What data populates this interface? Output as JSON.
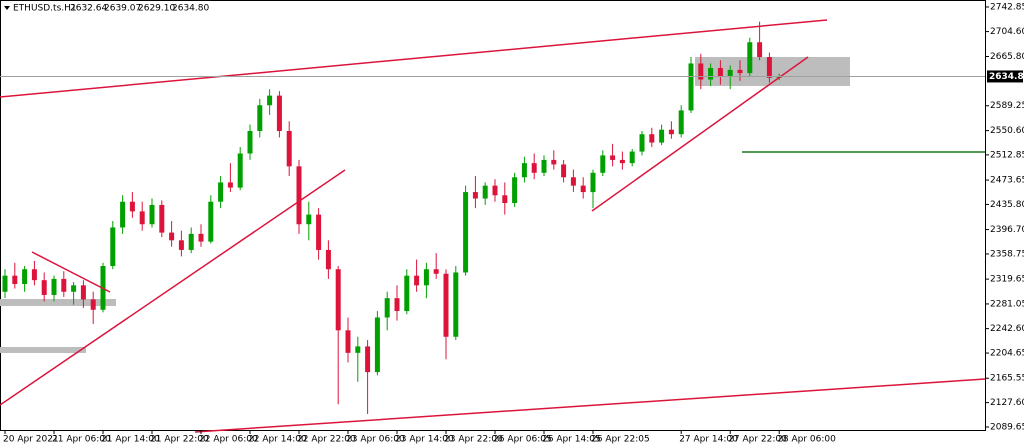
{
  "chart_data": {
    "type": "candlestick",
    "symbol": "ETHUSD.ts.H1",
    "quote": [
      "2632.64",
      "2639.07",
      "2629.10",
      "2634.80"
    ],
    "categories": [
      "20 Apr 2021",
      null,
      null,
      null,
      null,
      "21 Apr 06:00",
      null,
      null,
      null,
      null,
      "21 Apr 14:00",
      null,
      null,
      null,
      null,
      "21 Apr 22:00",
      null,
      null,
      null,
      null,
      "22 Apr 06:00",
      null,
      null,
      null,
      null,
      "22 Apr 14:00",
      null,
      null,
      null,
      null,
      "22 Apr 22:00",
      null,
      null,
      null,
      null,
      "23 Apr 06:00",
      null,
      null,
      null,
      null,
      "23 Apr 14:00",
      null,
      null,
      null,
      null,
      "23 Apr 22:00",
      null,
      null,
      null,
      null,
      "26 Apr 06:05",
      null,
      null,
      null,
      null,
      "26 Apr 14:05",
      null,
      null,
      null,
      null,
      "26 Apr 22:05",
      null,
      null,
      null,
      null,
      null,
      null,
      null,
      null,
      "27 Apr 14:00",
      null,
      null,
      null,
      null,
      "27 Apr 22:00",
      null,
      null,
      null,
      null,
      "28 Apr 06:00"
    ],
    "open": [
      2300,
      2325,
      2312,
      2335,
      2318,
      2295,
      2320,
      2300,
      2310,
      2288,
      2272,
      2340,
      2400,
      2440,
      2425,
      2405,
      2435,
      2392,
      2380,
      2365,
      2390,
      2378,
      2440,
      2470,
      2462,
      2515,
      2550,
      2590,
      2605,
      2550,
      2495,
      2405,
      2420,
      2365,
      2335,
      2240,
      2205,
      2215,
      2175,
      2260,
      2290,
      2270,
      2325,
      2310,
      2335,
      2328,
      2230,
      2330,
      2455,
      2445,
      2465,
      2450,
      2438,
      2478,
      2500,
      2485,
      2505,
      2498,
      2478,
      2465,
      2455,
      2485,
      2512,
      2505,
      2500,
      2518,
      2545,
      2532,
      2552,
      2545,
      2582,
      2655,
      2630,
      2648,
      2635,
      2645,
      2640,
      2688,
      2665,
      2632.64
    ],
    "high": [
      2335,
      2345,
      2340,
      2348,
      2330,
      2325,
      2332,
      2315,
      2318,
      2300,
      2345,
      2410,
      2450,
      2455,
      2440,
      2445,
      2442,
      2410,
      2395,
      2400,
      2405,
      2450,
      2480,
      2500,
      2525,
      2560,
      2600,
      2615,
      2612,
      2565,
      2505,
      2440,
      2430,
      2380,
      2340,
      2260,
      2230,
      2225,
      2270,
      2300,
      2310,
      2335,
      2350,
      2345,
      2360,
      2335,
      2340,
      2465,
      2480,
      2470,
      2475,
      2470,
      2485,
      2510,
      2515,
      2512,
      2520,
      2505,
      2490,
      2478,
      2490,
      2520,
      2530,
      2518,
      2522,
      2550,
      2555,
      2560,
      2565,
      2590,
      2665,
      2670,
      2655,
      2660,
      2652,
      2660,
      2695,
      2720,
      2672,
      2639.07
    ],
    "low": [
      2290,
      2305,
      2300,
      2310,
      2285,
      2285,
      2292,
      2280,
      2275,
      2250,
      2268,
      2335,
      2390,
      2415,
      2395,
      2400,
      2385,
      2370,
      2355,
      2360,
      2370,
      2375,
      2430,
      2455,
      2458,
      2505,
      2540,
      2575,
      2540,
      2480,
      2390,
      2380,
      2350,
      2320,
      2125,
      2190,
      2160,
      2110,
      2170,
      2240,
      2255,
      2265,
      2300,
      2290,
      2320,
      2195,
      2225,
      2325,
      2430,
      2435,
      2440,
      2420,
      2432,
      2470,
      2475,
      2480,
      2490,
      2470,
      2455,
      2445,
      2430,
      2480,
      2495,
      2490,
      2495,
      2512,
      2525,
      2528,
      2538,
      2540,
      2578,
      2615,
      2620,
      2622,
      2615,
      2628,
      2635,
      2660,
      2625,
      2629.1
    ],
    "close": [
      2325,
      2312,
      2335,
      2318,
      2295,
      2320,
      2300,
      2310,
      2288,
      2272,
      2340,
      2400,
      2440,
      2425,
      2405,
      2435,
      2392,
      2380,
      2365,
      2390,
      2378,
      2440,
      2470,
      2462,
      2515,
      2550,
      2590,
      2605,
      2550,
      2495,
      2405,
      2420,
      2365,
      2335,
      2240,
      2205,
      2215,
      2175,
      2260,
      2290,
      2270,
      2325,
      2310,
      2335,
      2328,
      2230,
      2330,
      2455,
      2445,
      2465,
      2450,
      2438,
      2478,
      2500,
      2485,
      2505,
      2498,
      2478,
      2465,
      2455,
      2485,
      2512,
      2505,
      2500,
      2518,
      2545,
      2532,
      2552,
      2545,
      2582,
      2655,
      2630,
      2648,
      2635,
      2645,
      2640,
      2688,
      2665,
      2632.64,
      2634.8
    ],
    "up_color": "#00a000",
    "down_color": "#dc143c",
    "current_price": {
      "value": 2634.8,
      "label": "2634.80"
    },
    "ylim": [
      2085.0,
      2753.7
    ],
    "yticks": [
      2742.85,
      {
        "value": 2704.6,
        "label": "2704.60"
      },
      {
        "value": 2665.8,
        "label": "2665.80"
      },
      2589.25,
      {
        "value": 2550.6,
        "label": "2550.60"
      },
      2512.85,
      2473.65,
      {
        "value": 2435.8,
        "label": "2435.80"
      },
      {
        "value": 2396.7,
        "label": "2396.70"
      },
      2358.75,
      2319.65,
      2281.05,
      {
        "value": 2242.6,
        "label": "2242.60"
      },
      2204.65,
      2165.55,
      {
        "value": 2127.6,
        "label": "2127.60"
      },
      2089.65
    ]
  }
}
